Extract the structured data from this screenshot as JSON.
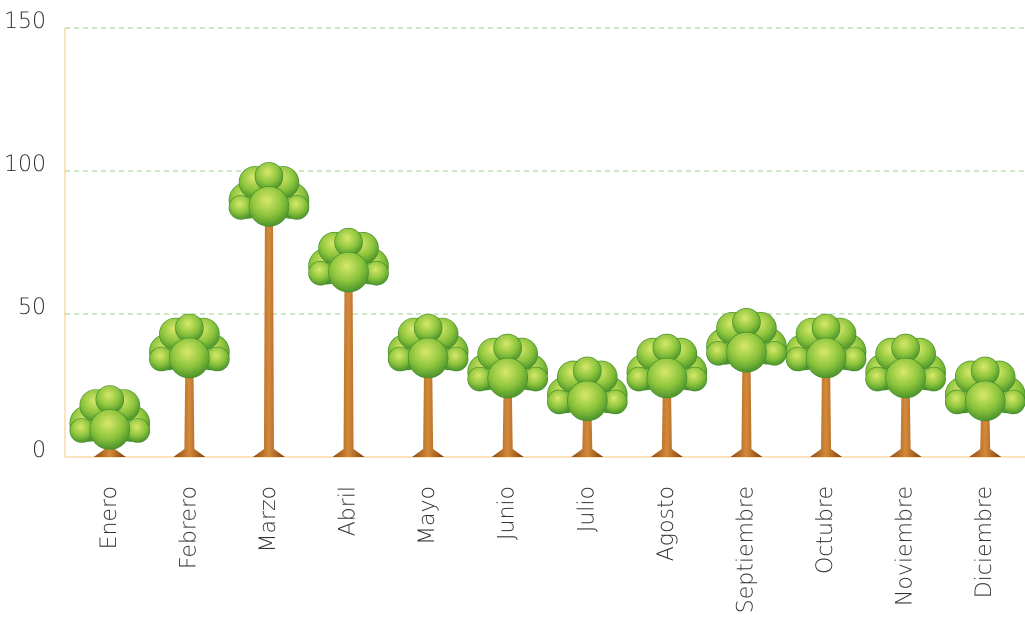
{
  "chart_data": {
    "type": "bar",
    "categories": [
      "Enero",
      "Febrero",
      "Marzo",
      "Abril",
      "Mayo",
      "Junio",
      "Julio",
      "Agosto",
      "Septiembre",
      "Octubre",
      "Noviembre",
      "Diciembre"
    ],
    "values": [
      25,
      50,
      103,
      80,
      50,
      43,
      35,
      43,
      52,
      50,
      43,
      35
    ],
    "color": "#7cb83a",
    "ylim": [
      0,
      150
    ],
    "yticks": [
      0,
      50,
      100,
      150
    ],
    "grid": true
  }
}
